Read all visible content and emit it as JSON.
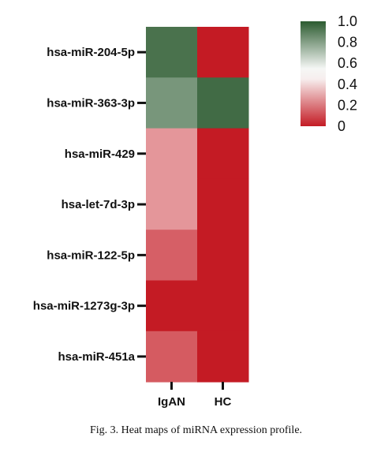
{
  "chart_data": {
    "type": "heatmap",
    "rows": [
      "hsa-miR-204-5p",
      "hsa-miR-363-3p",
      "hsa-miR-429",
      "hsa-let-7d-3p",
      "hsa-miR-122-5p",
      "hsa-miR-1273g-3p",
      "hsa-miR-451a"
    ],
    "columns": [
      "IgAN",
      "HC"
    ],
    "values": [
      [
        0.93,
        0.0
      ],
      [
        0.82,
        0.95
      ],
      [
        0.27,
        0.0
      ],
      [
        0.27,
        0.0
      ],
      [
        0.15,
        0.0
      ],
      [
        0.0,
        0.0
      ],
      [
        0.14,
        0.0
      ]
    ],
    "colorscale": {
      "range": [
        0,
        1
      ],
      "low_color": "#c41b24",
      "mid_color": "#ffffff",
      "high_color": "#2c5b30",
      "ticks": [
        "1.0",
        "0.8",
        "0.6",
        "0.4",
        "0.2",
        "0"
      ]
    }
  },
  "caption": "Fig. 3.  Heat maps of miRNA expression profile."
}
